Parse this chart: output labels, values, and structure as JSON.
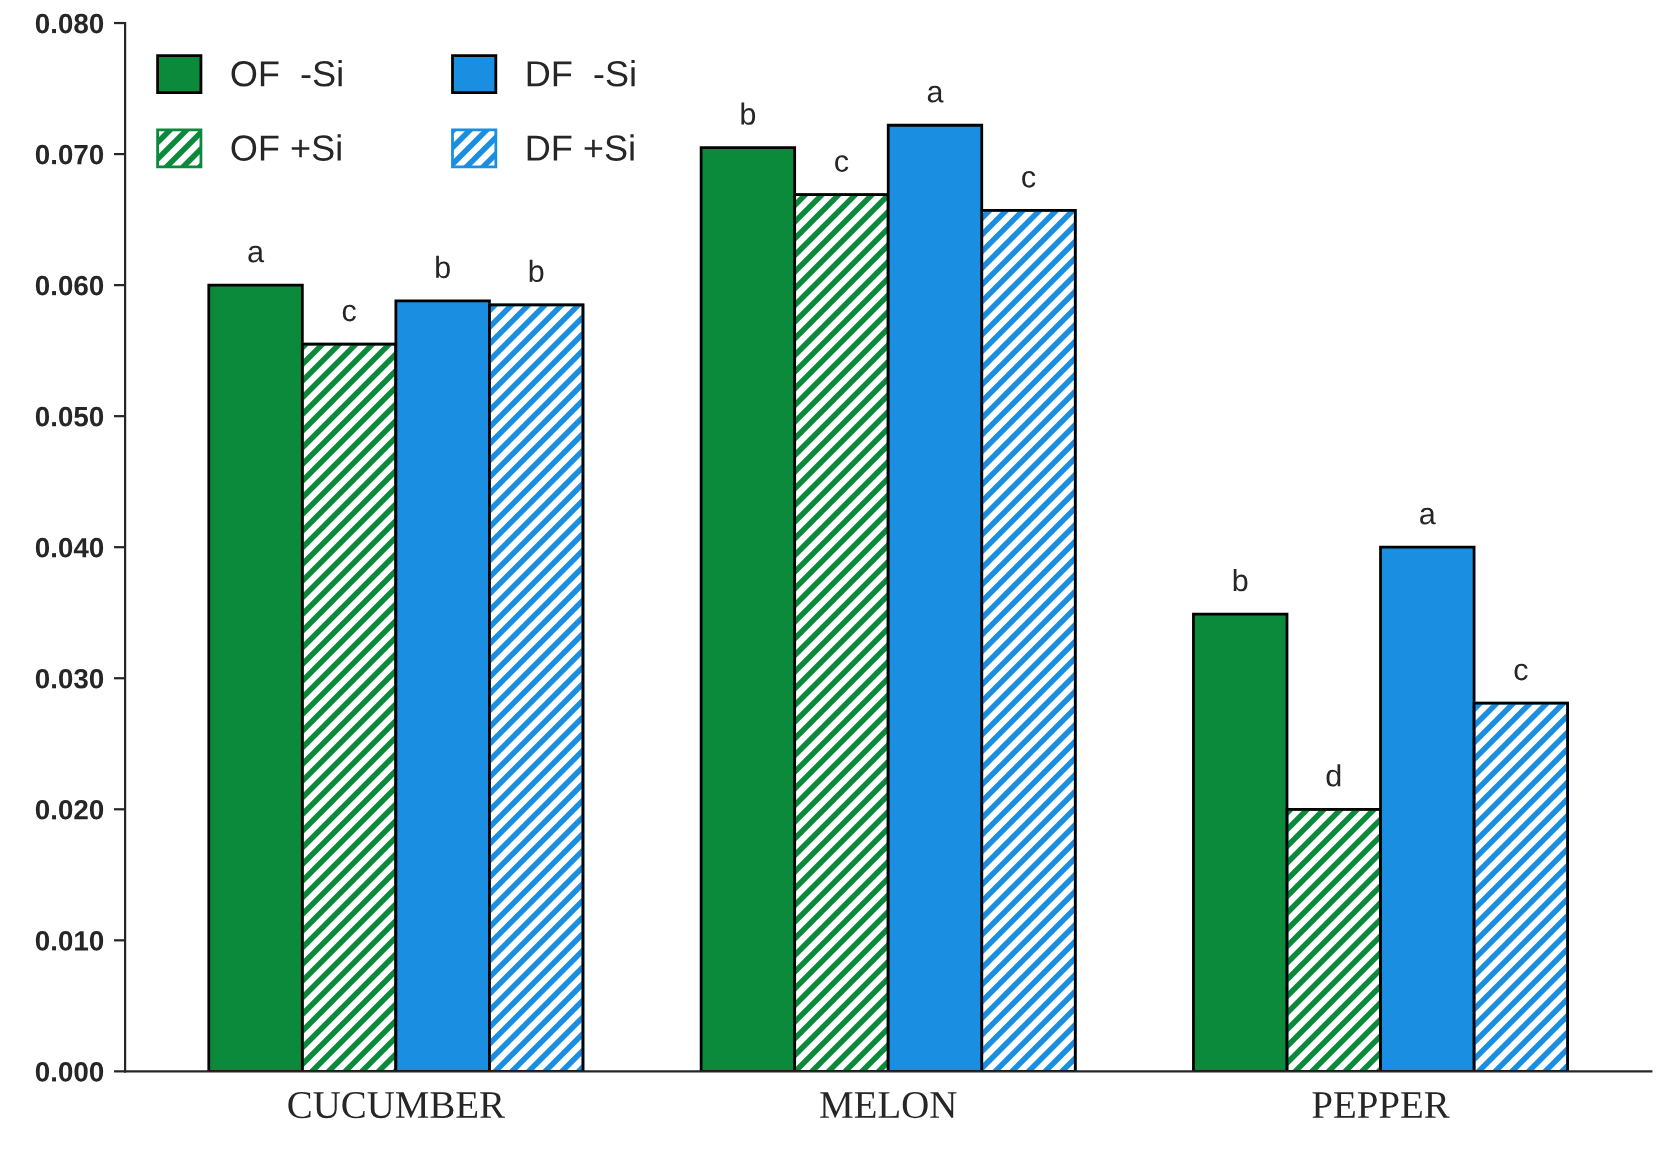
{
  "chart_data": {
    "type": "bar",
    "categories": [
      "CUCUMBER",
      "MELON",
      "PEPPER"
    ],
    "series": [
      {
        "name": "OF  -Si",
        "color": "#0b8a3c",
        "values": [
          0.06,
          0.0705,
          0.0349
        ],
        "value_labels": [
          "a",
          "b",
          "b"
        ]
      },
      {
        "name": "OF +Si",
        "color": "#0b8a3c",
        "values": [
          0.0555,
          0.0669,
          0.02
        ],
        "value_labels": [
          "c",
          "c",
          "d"
        ]
      },
      {
        "name": "DF  -Si",
        "color": "#1a8ee0",
        "values": [
          0.0588,
          0.0722,
          0.04
        ],
        "value_labels": [
          "b",
          "a",
          "a"
        ]
      },
      {
        "name": "DF +Si",
        "color": "#1a8ee0",
        "values": [
          0.0585,
          0.0657,
          0.0281
        ],
        "value_labels": [
          "b",
          "c",
          "c"
        ]
      }
    ],
    "ylim": [
      0,
      0.08
    ],
    "yticks": [
      {
        "value": 0,
        "label": "0.000"
      },
      {
        "value": 0.01,
        "label": "0.010"
      },
      {
        "value": 0.02,
        "label": "0.020"
      },
      {
        "value": 0.03,
        "label": "0.030"
      },
      {
        "value": 0.04,
        "label": "0.040"
      },
      {
        "value": 0.05,
        "label": "0.050"
      },
      {
        "value": 0.06,
        "label": "0.060"
      },
      {
        "value": 0.07,
        "label": "0.070"
      },
      {
        "value": 0.08,
        "label": "0.080"
      }
    ],
    "grid": false,
    "legend": "top left"
  }
}
